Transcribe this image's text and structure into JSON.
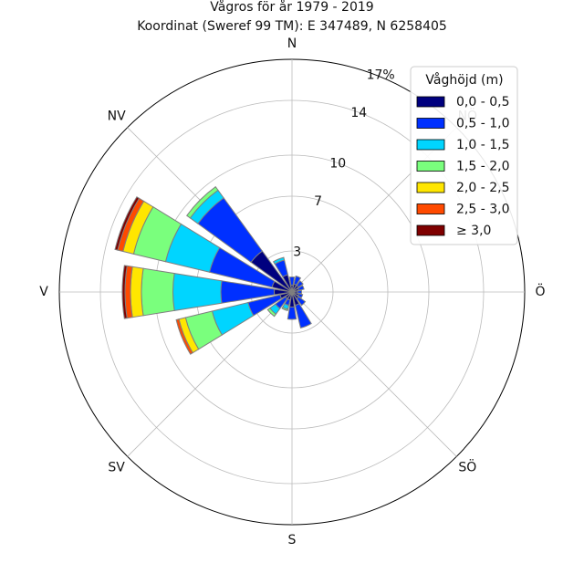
{
  "chart_data": {
    "type": "windrose",
    "title": "Vågros för år 1979 - 2019",
    "subtitle": "Koordinat (Sweref 99 TM): E 347489, N 6258405",
    "directions": [
      "N",
      "NNÖ",
      "NÖ",
      "ÖNÖ",
      "Ö",
      "ÖSÖ",
      "SÖ",
      "SSÖ",
      "S",
      "SSV",
      "SV",
      "VSV",
      "V",
      "VNV",
      "NV",
      "NNV"
    ],
    "direction_labels": [
      "N",
      "NÖ",
      "Ö",
      "SÖ",
      "S",
      "SV",
      "V",
      "NV"
    ],
    "radial_ticks": [
      3,
      7,
      10,
      14,
      17
    ],
    "radial_tick_labels": [
      "3",
      "7",
      "10",
      "14",
      "17%"
    ],
    "rmax": 17,
    "legend": {
      "title": "Våghöjd (m)",
      "placement": "top-right"
    },
    "series": [
      {
        "name": "0,0 - 0,5",
        "color": "#00007f",
        "values": [
          0.5,
          0.6,
          0.6,
          0.5,
          0.4,
          0.5,
          0.6,
          1.0,
          1.1,
          0.6,
          0.6,
          0.9,
          1.3,
          1.5,
          3.7,
          1.3
        ]
      },
      {
        "name": "0,5 - 1,0",
        "color": "#0030ff",
        "values": [
          0.6,
          0.6,
          0.4,
          0.4,
          0.3,
          0.3,
          0.6,
          1.7,
          0.9,
          0.4,
          0.9,
          2.4,
          3.9,
          4.7,
          4.8,
          1.1
        ]
      },
      {
        "name": "1,0 - 1,5",
        "color": "#00d5ff",
        "values": [
          0.0,
          0.0,
          0.0,
          0.0,
          0.0,
          0.0,
          0.0,
          0.0,
          0.0,
          0.3,
          0.5,
          2.7,
          3.5,
          3.3,
          0.7,
          0.2
        ]
      },
      {
        "name": "1,5 - 2,0",
        "color": "#7aff7d",
        "values": [
          0.0,
          0.0,
          0.0,
          0.0,
          0.0,
          0.0,
          0.0,
          0.0,
          0.0,
          0.1,
          0.2,
          2.0,
          2.3,
          2.4,
          0.3,
          0.0
        ]
      },
      {
        "name": "2,0 - 2,5",
        "color": "#ffe600",
        "values": [
          0.0,
          0.0,
          0.0,
          0.0,
          0.0,
          0.0,
          0.0,
          0.0,
          0.0,
          0.0,
          0.0,
          0.5,
          0.8,
          0.8,
          0.0,
          0.0
        ]
      },
      {
        "name": "2,5 - 3,0",
        "color": "#ff4a00",
        "values": [
          0.0,
          0.0,
          0.0,
          0.0,
          0.0,
          0.0,
          0.0,
          0.0,
          0.0,
          0.0,
          0.0,
          0.2,
          0.4,
          0.4,
          0.0,
          0.0
        ]
      },
      {
        "name": "≥ 3,0",
        "color": "#7f0000",
        "values": [
          0.0,
          0.0,
          0.0,
          0.0,
          0.0,
          0.0,
          0.0,
          0.0,
          0.0,
          0.0,
          0.0,
          0.0,
          0.2,
          0.2,
          0.0,
          0.0
        ]
      }
    ],
    "grid": true
  }
}
